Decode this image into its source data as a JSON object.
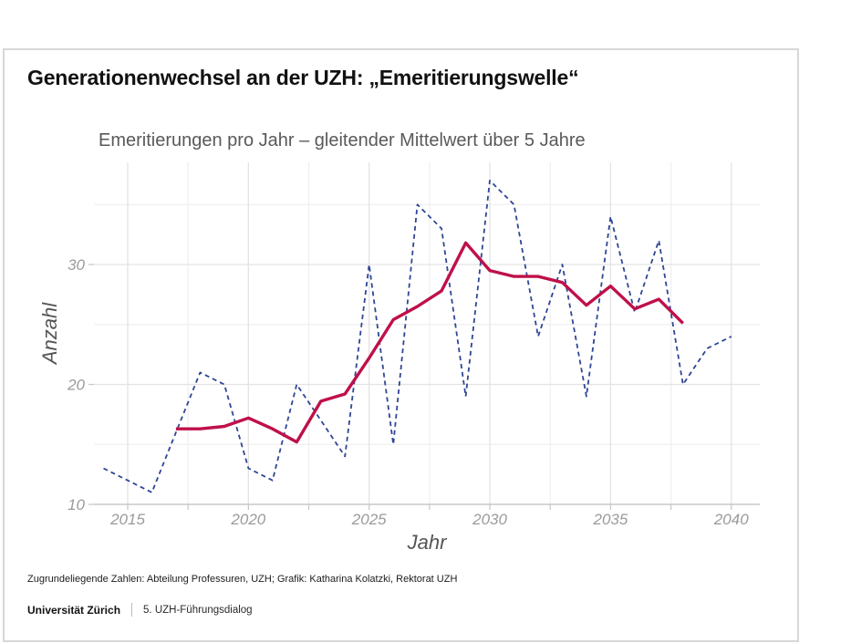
{
  "slide": {
    "title": "Generationenwechsel an der UZH: „Emeritierungswelle“",
    "source_note": "Zugrundeliegende Zahlen: Abteilung Professuren, UZH; Grafik: Katharina Kolatzki, Rektorat UZH",
    "footer": {
      "org": "Universität Zürich",
      "event": "5. UZH-Führungsdialog"
    }
  },
  "chart_data": {
    "type": "line",
    "title": "Emeritierungen pro Jahr – gleitender Mittelwert über 5 Jahre",
    "xlabel": "Jahr",
    "ylabel": "Anzahl",
    "x_ticks": [
      2015,
      2020,
      2025,
      2030,
      2035,
      2040
    ],
    "x_minor_ticks": [
      2017.5,
      2022.5,
      2027.5,
      2032.5,
      2037.5
    ],
    "y_ticks": [
      10,
      20,
      30
    ],
    "y_minor_gridlines": [
      15,
      25,
      35
    ],
    "xlim": [
      2013.6,
      2041.2
    ],
    "ylim": [
      10,
      38.5
    ],
    "grid": true,
    "legend_position": "none",
    "colors": {
      "yearly_line": "#2e4695",
      "moving_average_line": "#bf1049",
      "gridline_major": "#e3e3e3",
      "gridline_minor": "#efefef",
      "axis_line": "#c9c9c9",
      "tick_label": "#9b9b9b",
      "axis_title": "#555555"
    },
    "series": [
      {
        "name": "Emeritierungen pro Jahr",
        "style": "dashed",
        "color": "#2e4695",
        "x": [
          2014,
          2015,
          2016,
          2017,
          2018,
          2019,
          2020,
          2021,
          2022,
          2023,
          2024,
          2025,
          2026,
          2027,
          2028,
          2029,
          2030,
          2031,
          2032,
          2033,
          2034,
          2035,
          2036,
          2037,
          2038,
          2039,
          2040
        ],
        "values": [
          13,
          12,
          11,
          16,
          21,
          20,
          13,
          12,
          20,
          17,
          14,
          30,
          15,
          35,
          33,
          19,
          37,
          35,
          24,
          30,
          19,
          34,
          26,
          32,
          20,
          23,
          24
        ]
      },
      {
        "name": "Gleitender Mittelwert über 5 Jahre",
        "style": "solid",
        "color": "#bf1049",
        "x": [
          2017,
          2018,
          2019,
          2020,
          2021,
          2022,
          2023,
          2024,
          2025,
          2026,
          2027,
          2028,
          2029,
          2030,
          2031,
          2032,
          2033,
          2034,
          2035,
          2036,
          2037,
          2038
        ],
        "values": [
          16.3,
          16.3,
          16.5,
          17.2,
          16.3,
          15.2,
          18.6,
          19.2,
          22.2,
          25.4,
          26.5,
          27.8,
          31.8,
          29.5,
          29.0,
          29.0,
          28.5,
          26.6,
          28.2,
          26.3,
          27.1,
          25.1
        ]
      }
    ]
  }
}
